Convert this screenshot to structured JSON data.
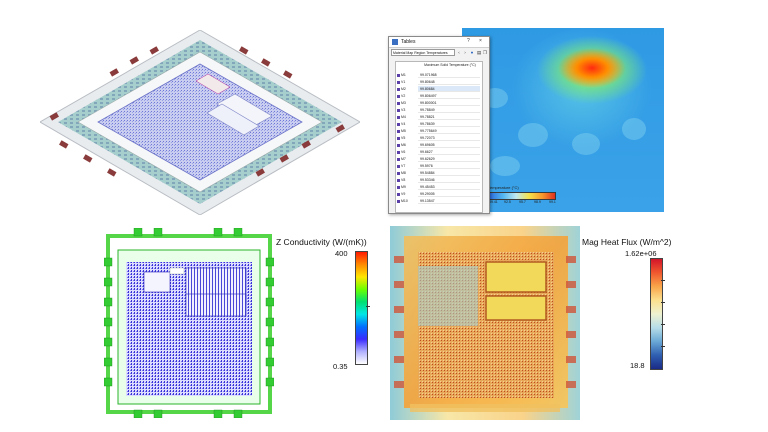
{
  "tables_window": {
    "title": "Tables",
    "help_glyph": "?",
    "close_glyph": "×",
    "selector_value": "Material Map Region Temperatures",
    "column_header": "Maximum Solid Temperature (°C)",
    "rows": [
      {
        "label": "M1",
        "value": "99.071968"
      },
      {
        "label": "V1",
        "value": "99.80648"
      },
      {
        "label": "M2",
        "value": "99.80684"
      },
      {
        "label": "V2",
        "value": "99.806497"
      },
      {
        "label": "M3",
        "value": "99.800001"
      },
      {
        "label": "V3",
        "value": "99.78849"
      },
      {
        "label": "M4",
        "value": "99.78821"
      },
      {
        "label": "V4",
        "value": "99.78639"
      },
      {
        "label": "M5",
        "value": "99.775649"
      },
      {
        "label": "V5",
        "value": "99.72073"
      },
      {
        "label": "M6",
        "value": "99.69605"
      },
      {
        "label": "V6",
        "value": "99.6627"
      },
      {
        "label": "M7",
        "value": "99.62629"
      },
      {
        "label": "V7",
        "value": "99.5976"
      },
      {
        "label": "M8",
        "value": "99.54884"
      },
      {
        "label": "V8",
        "value": "99.53346"
      },
      {
        "label": "M9",
        "value": "99.45453"
      },
      {
        "label": "V9",
        "value": "99.29005"
      },
      {
        "label": "M10",
        "value": "99.13547"
      }
    ],
    "selected_row": 2
  },
  "thermal_map": {
    "legend_title": "Temperature (°C)",
    "legend_ticks": [
      "86.1",
      "89.41",
      "92.5",
      "95.7",
      "98.9",
      "99.1"
    ]
  },
  "z_conductivity": {
    "title": "Z Conductivity (W/(mK))",
    "max_label": "400",
    "min_label": "0.35"
  },
  "heat_flux": {
    "title": "Mag Heat Flux (W/m^2)",
    "max_label": "1.62e+06",
    "min_label": "18.8"
  }
}
